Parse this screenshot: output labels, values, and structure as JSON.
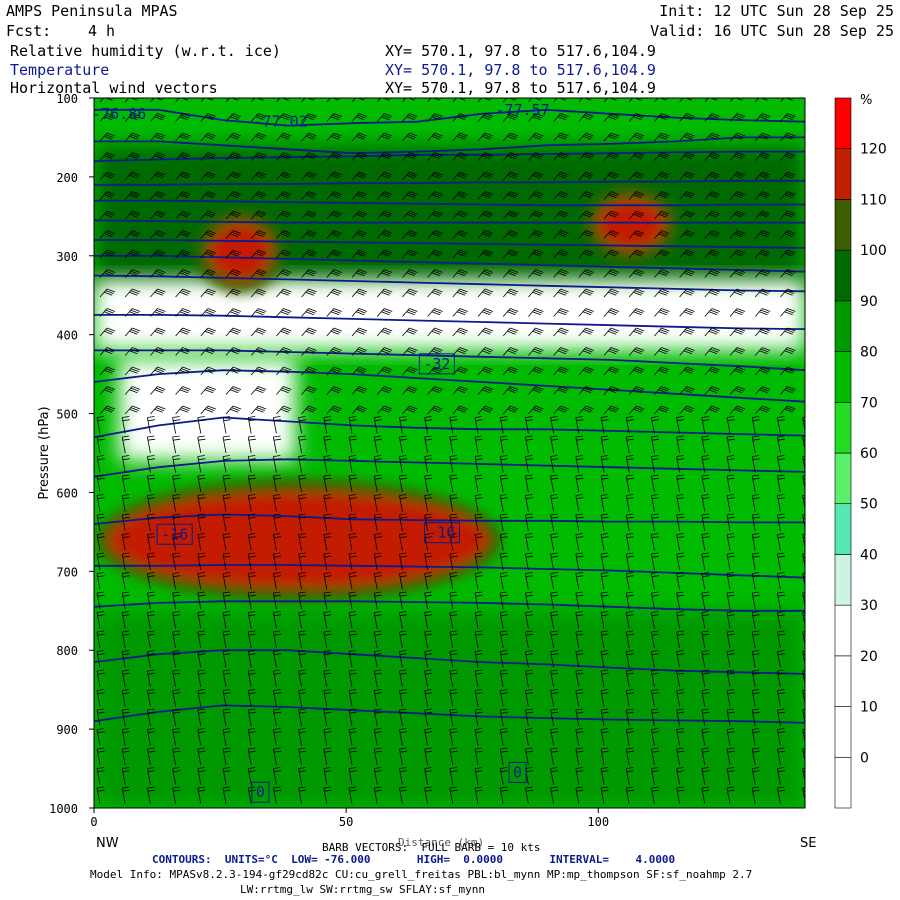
{
  "header": {
    "model": "AMPS Peninsula MPAS",
    "init": "Init: 12 UTC Sun 28 Sep 25",
    "fcst_label": "Fcst:",
    "fcst_value": "4 h",
    "valid": "Valid: 16 UTC Sun 28 Sep 25",
    "fields": [
      {
        "name": "Relative humidity (w.r.t. ice)",
        "xy": "XY= 570.1, 97.8 to 517.6,104.9"
      },
      {
        "name": "Temperature",
        "xy": "XY= 570.1, 97.8 to 517.6,104.9"
      },
      {
        "name": "Horizontal wind vectors",
        "xy": "XY= 570.1, 97.8 to 517.6,104.9"
      }
    ]
  },
  "footer": {
    "barb": "BARB VECTORS:  FULL BARB = 10 kts",
    "distance": "Distance (km)",
    "contours": "CONTOURS:  UNITS=°C  LOW= -76.000       HIGH=  0.0000       INTERVAL=    4.0000",
    "model_info": "Model Info: MPASv8.2.3-194-gf29cd82c CU:cu_grell_freitas PBL:bl_mynn MP:mp_thompson SF:sf_noahmp 2.7",
    "physics": "LW:rrtmg_lw SW:rrtmg_sw SFLAY:sf_mynn"
  },
  "colors": {
    "blue_contour": "#0b1a8e",
    "rh_levels": [
      "#ffffff",
      "#ffffff",
      "#ffffff",
      "#ffffff",
      "#ccf5e0",
      "#55e8b0",
      "#5cf06a",
      "#22dd22",
      "#00bb00",
      "#009900",
      "#006a00",
      "#3c5e00",
      "#c41e00",
      "#ff0000"
    ]
  },
  "chart_data": {
    "type": "cross-section",
    "xlabel": "Distance (km)",
    "ylabel": "Pressure (hPa)",
    "x_ticks": [
      0,
      50,
      100
    ],
    "xlim": [
      0,
      141
    ],
    "y_ticks": [
      100,
      200,
      300,
      400,
      500,
      600,
      700,
      800,
      900,
      1000
    ],
    "ylim": [
      1000,
      100
    ],
    "endpoints": [
      "NW",
      "SE"
    ],
    "colorbar": {
      "unit": "%",
      "tick_labels": [
        "0",
        "10",
        "20",
        "30",
        "40",
        "50",
        "60",
        "70",
        "80",
        "90",
        "100",
        "110",
        "120"
      ],
      "levels": [
        -10,
        0,
        10,
        20,
        30,
        40,
        50,
        60,
        70,
        80,
        90,
        100,
        110,
        120,
        130
      ]
    },
    "rh_blobs": [
      {
        "label": "moist-upper-band",
        "x": [
          0,
          141
        ],
        "p": [
          160,
          350
        ],
        "rh": 92
      },
      {
        "label": "dry-400",
        "x": [
          0,
          141
        ],
        "p": [
          330,
          420
        ],
        "rh": 25
      },
      {
        "label": "dry-500",
        "x": [
          5,
          40
        ],
        "p": [
          430,
          560
        ],
        "rh": 15
      },
      {
        "label": "ice-saturated-300-left",
        "x": [
          23,
          35
        ],
        "p": [
          260,
          330
        ],
        "rh": 118
      },
      {
        "label": "ice-saturated-250-right",
        "x": [
          100,
          113
        ],
        "p": [
          230,
          290
        ],
        "rh": 118
      },
      {
        "label": "ice-saturated-650",
        "x": [
          3,
          78
        ],
        "p": [
          600,
          720
        ],
        "rh": 115
      },
      {
        "label": "boundary-layer",
        "x": [
          0,
          141
        ],
        "p": [
          750,
          1000
        ],
        "rh": 80
      }
    ],
    "temperature_contour_labels": [
      {
        "text": "-76.86",
        "x": 5,
        "p": 120
      },
      {
        "text": "-77.02",
        "x": 37,
        "p": 130
      },
      {
        "text": "-77.57",
        "x": 85,
        "p": 115
      },
      {
        "text": "-32",
        "x": 68,
        "p": 437
      },
      {
        "text": "-16",
        "x": 16,
        "p": 653
      },
      {
        "text": "-16",
        "x": 69,
        "p": 651
      },
      {
        "text": "0",
        "x": 84,
        "p": 955
      },
      {
        "text": "0",
        "x": 33,
        "p": 980
      }
    ],
    "temperature_lines_p": [
      [
        115,
        115,
        128,
        135,
        132,
        130,
        120,
        115,
        120,
        125,
        128,
        130
      ],
      [
        155,
        155,
        160,
        165,
        170,
        168,
        165,
        160,
        158,
        155,
        150,
        150
      ],
      [
        180,
        178,
        176,
        175,
        174,
        172,
        172,
        171,
        170,
        169,
        168,
        168
      ],
      [
        210,
        210,
        209,
        209,
        208,
        208,
        207,
        207,
        206,
        206,
        205,
        205
      ],
      [
        230,
        230,
        231,
        232,
        233,
        234,
        235,
        236,
        236,
        236,
        235,
        235
      ],
      [
        255,
        256,
        257,
        258,
        258,
        258,
        258,
        258,
        258,
        258,
        258,
        258
      ],
      [
        280,
        280,
        281,
        282,
        283,
        284,
        285,
        286,
        287,
        288,
        289,
        290
      ],
      [
        300,
        300,
        302,
        304,
        306,
        308,
        310,
        312,
        314,
        316,
        318,
        320
      ],
      [
        325,
        326,
        328,
        330,
        332,
        334,
        336,
        338,
        340,
        342,
        344,
        345
      ],
      [
        375,
        375,
        376,
        378,
        380,
        382,
        384,
        386,
        388,
        390,
        392,
        393
      ],
      [
        420,
        420,
        420,
        422,
        424,
        426,
        428,
        430,
        432,
        436,
        440,
        445
      ],
      [
        460,
        450,
        445,
        447,
        450,
        455,
        460,
        465,
        470,
        475,
        480,
        485
      ],
      [
        530,
        515,
        505,
        510,
        515,
        518,
        520,
        520,
        522,
        524,
        526,
        528
      ],
      [
        580,
        568,
        560,
        558,
        560,
        562,
        564,
        566,
        568,
        570,
        572,
        574
      ],
      [
        640,
        632,
        628,
        630,
        634,
        635,
        636,
        636,
        637,
        637,
        638,
        638
      ],
      [
        693,
        693,
        692,
        692,
        693,
        694,
        695,
        697,
        699,
        702,
        705,
        708
      ],
      [
        745,
        740,
        738,
        738,
        738,
        739,
        740,
        742,
        745,
        748,
        750,
        750
      ],
      [
        815,
        805,
        800,
        800,
        805,
        810,
        815,
        818,
        822,
        826,
        828,
        830
      ],
      [
        890,
        878,
        870,
        872,
        876,
        880,
        884,
        886,
        888,
        889,
        890,
        892
      ]
    ]
  }
}
